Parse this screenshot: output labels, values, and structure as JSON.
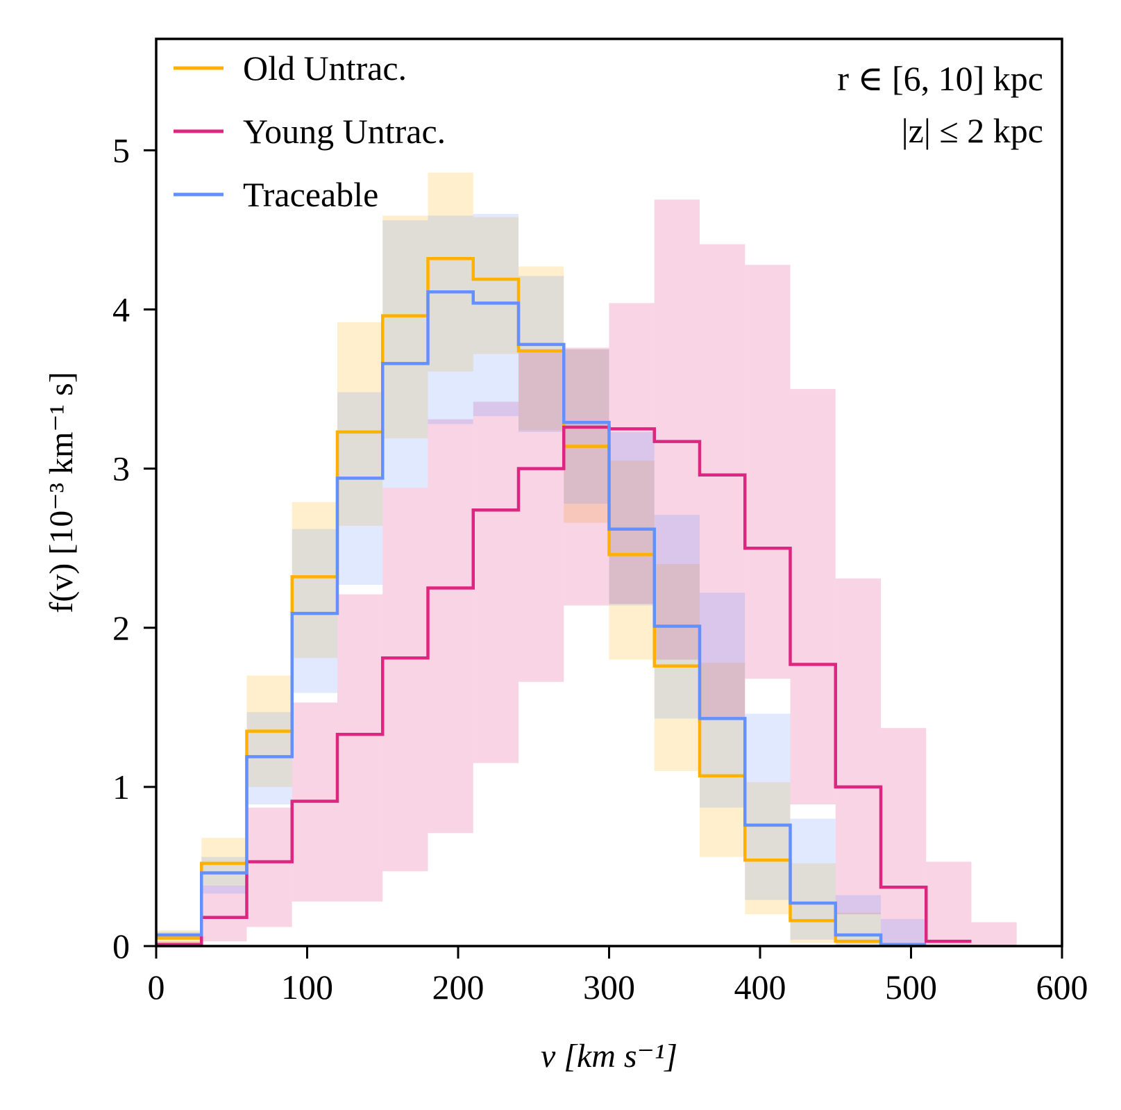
{
  "chart_data": {
    "type": "histogram-step",
    "title": "",
    "xlabel": "v [km s⁻¹]",
    "ylabel": "f(v) [10⁻³ km⁻¹ s]",
    "xlim": [
      0,
      600
    ],
    "ylim": [
      0,
      5.7
    ],
    "xticks": [
      0,
      100,
      200,
      300,
      400,
      500,
      600
    ],
    "yticks": [
      0,
      1,
      2,
      3,
      4,
      5
    ],
    "xtick_labels": [
      "0",
      "100",
      "200",
      "300",
      "400",
      "500",
      "600"
    ],
    "ytick_labels": [
      "0",
      "1",
      "2",
      "3",
      "4",
      "5"
    ],
    "bin_edges": [
      0,
      30,
      60,
      90,
      120,
      150,
      180,
      210,
      240,
      270,
      300,
      330,
      360,
      390,
      420,
      450,
      480,
      510,
      540,
      570,
      600
    ],
    "legend_position": "top-left",
    "annotations": [
      "r ∈ [6, 10] kpc",
      "|z| ≤ 2 kpc"
    ],
    "series": [
      {
        "name": "Old Untrac.",
        "color": "#FFB000",
        "values": [
          0.05,
          0.52,
          1.35,
          2.32,
          3.23,
          3.96,
          4.32,
          4.19,
          3.74,
          3.14,
          2.46,
          1.76,
          1.07,
          0.54,
          0.16,
          0.03,
          0.0,
          0.0,
          0.0,
          0.0
        ],
        "upper": [
          0.1,
          0.68,
          1.7,
          2.79,
          3.92,
          4.59,
          4.86,
          4.58,
          4.27,
          3.75,
          3.05,
          2.4,
          1.78,
          1.03,
          0.52,
          0.21,
          0.0,
          0.0,
          0.0,
          0.0
        ],
        "lower": [
          0.01,
          0.38,
          1.0,
          1.81,
          2.64,
          3.19,
          3.61,
          3.72,
          3.24,
          2.66,
          1.8,
          1.1,
          0.56,
          0.2,
          0.02,
          0.0,
          0.0,
          0.0,
          0.0,
          0.0
        ]
      },
      {
        "name": "Young Untrac.",
        "color": "#DC267F",
        "values": [
          0.01,
          0.18,
          0.53,
          0.91,
          1.33,
          1.81,
          2.25,
          2.74,
          3.0,
          3.26,
          3.25,
          3.17,
          2.96,
          2.5,
          1.77,
          1.0,
          0.37,
          0.03,
          0.0,
          0.0
        ],
        "upper": [
          0.03,
          0.38,
          0.87,
          1.53,
          2.21,
          2.88,
          3.31,
          3.42,
          3.75,
          3.76,
          4.04,
          4.69,
          4.41,
          4.28,
          3.5,
          2.31,
          1.37,
          0.53,
          0.15,
          0.0
        ],
        "lower": [
          0.0,
          0.03,
          0.12,
          0.28,
          0.28,
          0.47,
          0.71,
          1.15,
          1.66,
          2.14,
          2.15,
          1.8,
          1.44,
          1.68,
          0.89,
          0.2,
          0.0,
          0.0,
          0.0,
          0.0
        ]
      },
      {
        "name": "Traceable",
        "color": "#648FFF",
        "values": [
          0.07,
          0.46,
          1.19,
          2.09,
          2.94,
          3.66,
          4.11,
          4.04,
          3.78,
          3.29,
          2.62,
          2.01,
          1.43,
          0.76,
          0.27,
          0.07,
          0.01,
          0.0,
          0.0,
          0.0
        ],
        "upper": [
          0.09,
          0.56,
          1.47,
          2.62,
          3.48,
          4.56,
          4.59,
          4.6,
          4.21,
          3.75,
          3.23,
          2.71,
          2.22,
          1.46,
          0.8,
          0.32,
          0.17,
          0.0,
          0.0,
          0.0
        ],
        "lower": [
          0.04,
          0.33,
          0.89,
          1.59,
          2.27,
          2.88,
          3.28,
          3.33,
          3.23,
          2.78,
          2.14,
          1.43,
          0.87,
          0.29,
          0.04,
          0.0,
          0.0,
          0.0,
          0.0,
          0.0
        ]
      }
    ]
  }
}
